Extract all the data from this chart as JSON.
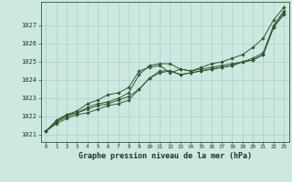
{
  "title": "Graphe pression niveau de la mer (hPa)",
  "background_color": "#cce8e0",
  "grid_color": "#a8d0c8",
  "line_color": "#2d5a2d",
  "text_color": "#1a3a1a",
  "xlim": [
    -0.5,
    23.5
  ],
  "ylim": [
    1020.6,
    1028.3
  ],
  "yticks": [
    1021,
    1022,
    1023,
    1024,
    1025,
    1026,
    1027
  ],
  "xtick_labels": [
    "0",
    "1",
    "2",
    "3",
    "4",
    "5",
    "6",
    "7",
    "8",
    "9",
    "10",
    "11",
    "12",
    "13",
    "14",
    "15",
    "16",
    "17",
    "18",
    "19",
    "20",
    "21",
    "22",
    "23"
  ],
  "series": [
    [
      1021.2,
      1021.6,
      1021.9,
      1022.1,
      1022.2,
      1022.4,
      1022.6,
      1022.7,
      1022.9,
      1023.5,
      1024.1,
      1024.5,
      1024.5,
      1024.3,
      1024.4,
      1024.5,
      1024.6,
      1024.7,
      1024.8,
      1025.0,
      1025.1,
      1025.4,
      1026.9,
      1027.7
    ],
    [
      1021.2,
      1021.7,
      1022.1,
      1022.2,
      1022.5,
      1022.7,
      1022.8,
      1023.0,
      1023.3,
      1024.3,
      1024.8,
      1024.9,
      1024.9,
      1024.6,
      1024.5,
      1024.6,
      1024.7,
      1024.8,
      1024.9,
      1025.0,
      1025.2,
      1025.5,
      1027.0,
      1027.8
    ],
    [
      1021.2,
      1021.8,
      1022.1,
      1022.3,
      1022.7,
      1022.9,
      1023.2,
      1023.3,
      1023.6,
      1024.5,
      1024.7,
      1024.8,
      1024.4,
      1024.6,
      1024.5,
      1024.7,
      1024.9,
      1025.0,
      1025.2,
      1025.4,
      1025.8,
      1026.3,
      1027.3,
      1028.0
    ],
    [
      1021.2,
      1021.7,
      1022.0,
      1022.2,
      1022.4,
      1022.6,
      1022.7,
      1022.9,
      1023.1,
      1023.5,
      1024.1,
      1024.4,
      1024.5,
      1024.3,
      1024.4,
      1024.5,
      1024.6,
      1024.7,
      1024.8,
      1025.0,
      1025.1,
      1025.4,
      1026.9,
      1027.6
    ]
  ]
}
